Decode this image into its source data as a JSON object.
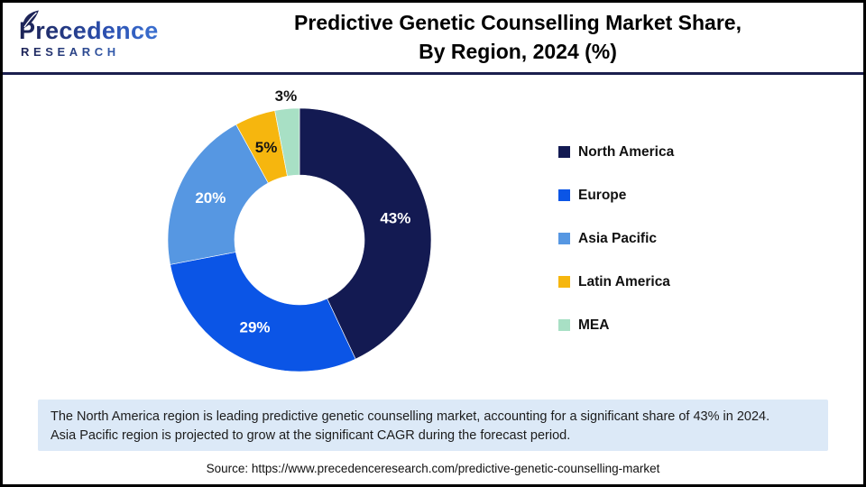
{
  "header": {
    "logo": {
      "line1": "Precedence",
      "line2": "RESEARCH"
    },
    "title_line1": "Predictive Genetic Counselling Market Share,",
    "title_line2": "By Region, 2024 (%)"
  },
  "chart_data": {
    "type": "pie",
    "subtype": "donut",
    "title": "Predictive Genetic Counselling Market Share, By Region, 2024 (%)",
    "direction": "clockwise",
    "start_angle_deg": 0,
    "inner_radius_ratio": 0.49,
    "legend_position": "right",
    "categories": [
      "North America",
      "Europe",
      "Asia Pacific",
      "Latin America",
      "MEA"
    ],
    "values": [
      43,
      29,
      20,
      5,
      3
    ],
    "labels": [
      "43%",
      "29%",
      "20%",
      "5%",
      "3%"
    ],
    "colors": [
      "#131A52",
      "#0B55E6",
      "#5697E2",
      "#F6B60E",
      "#A8E0C5"
    ],
    "label_colors": [
      "#FFFFFF",
      "#FFFFFF",
      "#FFFFFF",
      "#141414",
      "#141414"
    ],
    "label_placement": [
      "inside",
      "inside",
      "inside",
      "inside",
      "outside"
    ]
  },
  "summary": {
    "line1": "The North America region is leading predictive genetic counselling market, accounting for a significant share of 43% in 2024.",
    "line2": "Asia Pacific region is projected to grow at the significant CAGR during the forecast period."
  },
  "source": "Source: https://www.precedenceresearch.com/predictive-genetic-counselling-market",
  "theme": {
    "outer_border": "#000000",
    "divider_navy": "#1B1F4E",
    "summary_bg": "#DCE9F7",
    "background": "#FFFFFF"
  }
}
